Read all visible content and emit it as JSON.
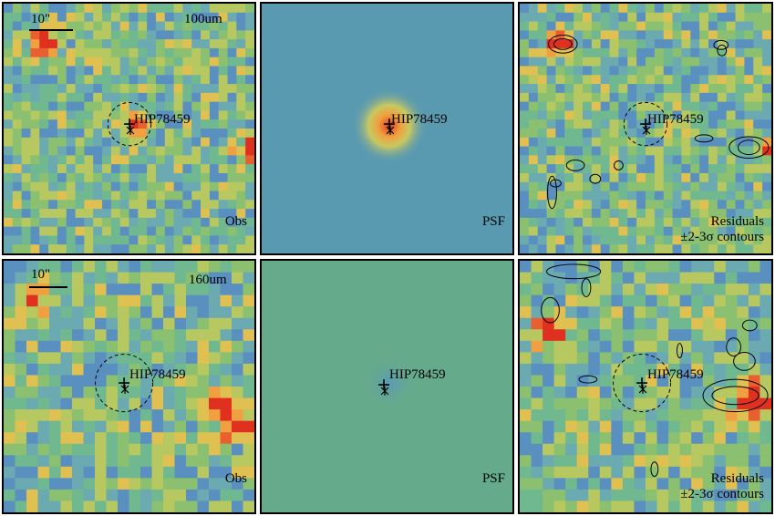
{
  "panels": [
    {
      "id": "p1",
      "band": "100um",
      "source": "HIP78459",
      "scale": "10\"",
      "label": "Obs"
    },
    {
      "id": "p2",
      "source": "HIP78459",
      "label": "PSF"
    },
    {
      "id": "p3",
      "source": "HIP78459",
      "label": "Residuals",
      "sublabel": "±2-3σ contours"
    },
    {
      "id": "p4",
      "band": "160um",
      "source": "HIP78459",
      "scale": "10\"",
      "label": "Obs"
    },
    {
      "id": "p5",
      "source": "HIP78459",
      "label": "PSF"
    },
    {
      "id": "p6",
      "source": "HIP78459",
      "label": "Residuals",
      "sublabel": "±2-3σ contours"
    }
  ],
  "colors": {
    "psf_bg_top": "#5a9ab0",
    "psf_bg_bottom": "#66aa8c",
    "hot": "#e03020",
    "warm": "#f0a040"
  }
}
